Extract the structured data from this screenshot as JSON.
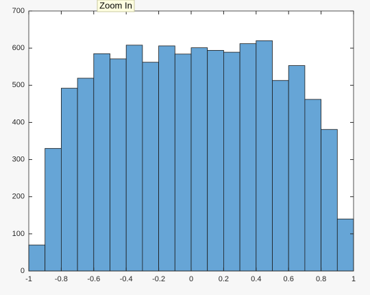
{
  "chart_data": {
    "type": "histogram",
    "tooltip": "Zoom In",
    "bins": [
      -1,
      -0.9,
      -0.8,
      -0.7,
      -0.6,
      -0.5,
      -0.4,
      -0.3,
      -0.2,
      -0.1,
      0,
      0.1,
      0.2,
      0.3,
      0.4,
      0.5,
      0.6,
      0.7,
      0.8,
      0.9,
      1
    ],
    "values": [
      70,
      330,
      492,
      519,
      585,
      571,
      608,
      562,
      606,
      584,
      601,
      594,
      589,
      612,
      620,
      513,
      553,
      462,
      381,
      140
    ],
    "color": "#66a5d6",
    "xlim": [
      -1,
      1
    ],
    "xticks": [
      -1,
      -0.8,
      -0.6,
      -0.4,
      -0.2,
      0,
      0.2,
      0.4,
      0.6,
      0.8,
      1
    ],
    "ylim": [
      0,
      700
    ],
    "yticks": [
      0,
      100,
      200,
      300,
      400,
      500,
      600,
      700
    ]
  }
}
